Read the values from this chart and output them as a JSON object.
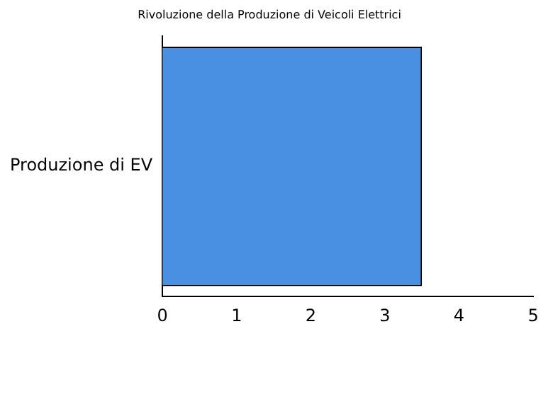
{
  "chart_data": {
    "type": "bar",
    "orientation": "horizontal",
    "title": "Rivoluzione della Produzione di Veicoli Elettrici",
    "categories": [
      "Produzione di EV"
    ],
    "values": [
      3.5
    ],
    "color": "#4a90e2",
    "xlim": [
      0,
      5
    ],
    "xticks": [
      0,
      1,
      2,
      3,
      4,
      5
    ],
    "grid": false,
    "legend": false
  }
}
